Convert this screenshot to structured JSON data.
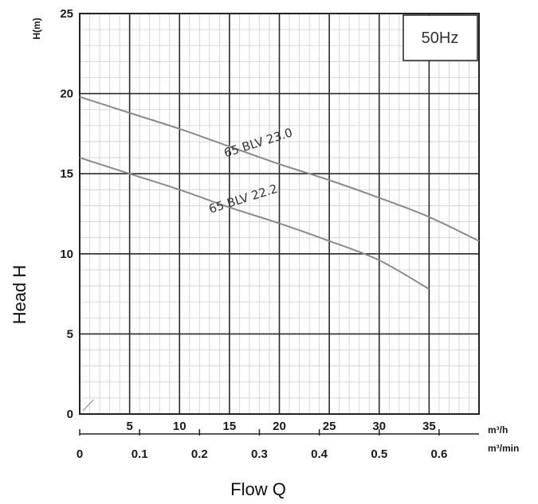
{
  "chart_data": {
    "type": "line",
    "frequency_badge": "50Hz",
    "ylabel_axis": "H(m)",
    "ylabel_outer": "Head H",
    "xlabel_outer": "Flow Q",
    "x_unit_primary": "m³/h",
    "x_unit_secondary": "m³/min",
    "xlim": [
      0,
      40
    ],
    "ylim": [
      0,
      25
    ],
    "x_ticks": [
      5,
      10,
      15,
      20,
      25,
      30,
      35
    ],
    "x_ticks_secondary": [
      "0",
      "0.1",
      "0.2",
      "0.3",
      "0.4",
      "0.5",
      "0.6"
    ],
    "y_ticks": [
      0,
      5,
      10,
      15,
      20,
      25
    ],
    "grid": true,
    "series": [
      {
        "name": "65 BLV 23.0",
        "x": [
          0,
          5,
          10,
          15,
          20,
          25,
          30,
          35,
          40
        ],
        "y": [
          19.8,
          18.8,
          17.8,
          16.7,
          15.6,
          14.6,
          13.5,
          12.3,
          10.8
        ]
      },
      {
        "name": "65 BLV 22.2",
        "x": [
          0,
          5,
          10,
          15,
          20,
          25,
          30,
          35
        ],
        "y": [
          16.0,
          15.0,
          14.0,
          12.9,
          11.9,
          10.8,
          9.6,
          7.8
        ]
      }
    ]
  }
}
